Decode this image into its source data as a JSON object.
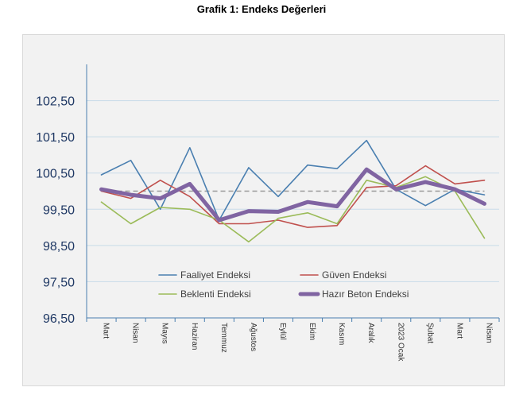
{
  "title": "Grafik 1: Endeks Değerleri",
  "colors": {
    "faaliyet": "#4a7fb0",
    "guven": "#c0504d",
    "beklenti": "#9bbb59",
    "hazir_beton": "#8064a2",
    "reference": "#999999",
    "axis": "#4a7fb0",
    "grid": "#c9dbe9",
    "tick_text": "#1f3864"
  },
  "chart_data": {
    "type": "line",
    "title": "Grafik 1: Endeks Değerleri",
    "xlabel": "",
    "ylabel": "",
    "ylim": [
      96.5,
      103.5
    ],
    "yticks": [
      96.5,
      97.5,
      98.5,
      99.5,
      100.5,
      101.5,
      102.5
    ],
    "ytick_labels": [
      "96,50",
      "97,50",
      "98,50",
      "99,50",
      "100,50",
      "101,50",
      "102,50"
    ],
    "grid": true,
    "legend_position": "lower-center",
    "reference_line": 100,
    "categories": [
      "Mart",
      "Nisan",
      "Mayıs",
      "Haziran",
      "Temmuz",
      "Ağustos",
      "Eylül",
      "Ekim",
      "Kasım",
      "Aralık",
      "2023 Ocak",
      "Şubat",
      "Mart",
      "Nisan"
    ],
    "series": [
      {
        "name": "Faaliyet Endeksi",
        "values": [
          100.45,
          100.85,
          99.5,
          101.2,
          99.2,
          100.65,
          99.85,
          100.72,
          100.62,
          101.4,
          100.05,
          99.6,
          100.05,
          99.9
        ]
      },
      {
        "name": "Güven Endeksi",
        "values": [
          100.0,
          99.8,
          100.3,
          99.85,
          99.1,
          99.1,
          99.2,
          99.0,
          99.05,
          100.1,
          100.15,
          100.7,
          100.2,
          100.3
        ]
      },
      {
        "name": "Beklenti Endeksi",
        "values": [
          99.7,
          99.1,
          99.55,
          99.5,
          99.2,
          98.6,
          99.25,
          99.4,
          99.1,
          100.3,
          100.1,
          100.4,
          100.0,
          98.7
        ]
      },
      {
        "name": "Hazır Beton Endeksi",
        "values": [
          100.05,
          99.9,
          99.8,
          100.2,
          99.2,
          99.45,
          99.43,
          99.7,
          99.58,
          100.6,
          100.05,
          100.25,
          100.05,
          99.65
        ]
      }
    ]
  }
}
